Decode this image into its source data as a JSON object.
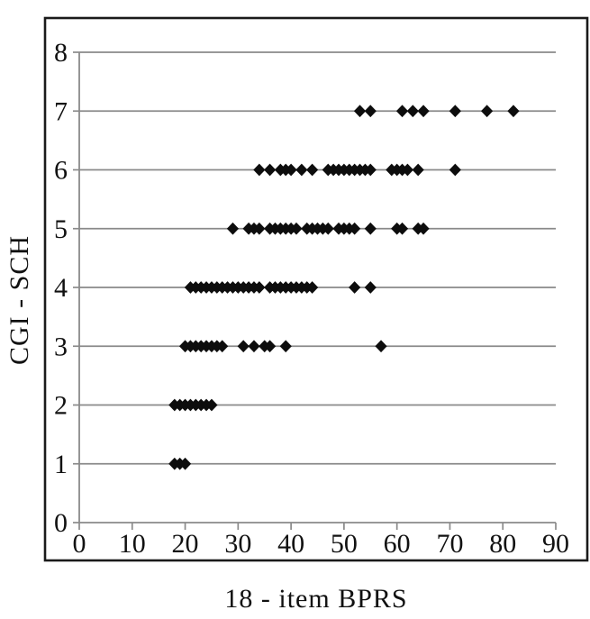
{
  "chart_data": {
    "type": "scatter",
    "title": "",
    "xlabel": "18 - item BPRS",
    "ylabel": "CGI - SCH",
    "xlim": [
      0,
      90
    ],
    "ylim": [
      0,
      8
    ],
    "x_ticks": [
      0,
      10,
      20,
      30,
      40,
      50,
      60,
      70,
      80,
      90
    ],
    "y_ticks": [
      0,
      1,
      2,
      3,
      4,
      5,
      6,
      7,
      8
    ],
    "grid": "horizontal",
    "legend": "none",
    "marker": "filled-diamond",
    "marker_color": "#0d0d0d",
    "grid_color": "#8a8a8a",
    "frame_color": "#1a1a1a",
    "label_color": "#111111",
    "groups": [
      {
        "cgi_sch": 1,
        "bprs": [
          18,
          19,
          20
        ]
      },
      {
        "cgi_sch": 2,
        "bprs": [
          18,
          19,
          20,
          21,
          22,
          23,
          24,
          25
        ]
      },
      {
        "cgi_sch": 3,
        "bprs": [
          20,
          21,
          22,
          23,
          24,
          25,
          26,
          27,
          31,
          33,
          35,
          36,
          39,
          57
        ]
      },
      {
        "cgi_sch": 4,
        "bprs": [
          21,
          22,
          23,
          24,
          25,
          26,
          27,
          28,
          29,
          30,
          31,
          32,
          33,
          34,
          36,
          37,
          38,
          39,
          40,
          41,
          42,
          43,
          44,
          52,
          55
        ]
      },
      {
        "cgi_sch": 5,
        "bprs": [
          29,
          32,
          33,
          34,
          36,
          37,
          38,
          39,
          40,
          41,
          43,
          44,
          45,
          46,
          47,
          49,
          50,
          51,
          52,
          55,
          60,
          61,
          64,
          65
        ]
      },
      {
        "cgi_sch": 6,
        "bprs": [
          34,
          36,
          38,
          39,
          40,
          42,
          44,
          47,
          48,
          49,
          50,
          51,
          52,
          53,
          54,
          55,
          59,
          60,
          61,
          62,
          64,
          71
        ]
      },
      {
        "cgi_sch": 7,
        "bprs": [
          53,
          55,
          61,
          63,
          65,
          71,
          77,
          82
        ]
      }
    ]
  }
}
